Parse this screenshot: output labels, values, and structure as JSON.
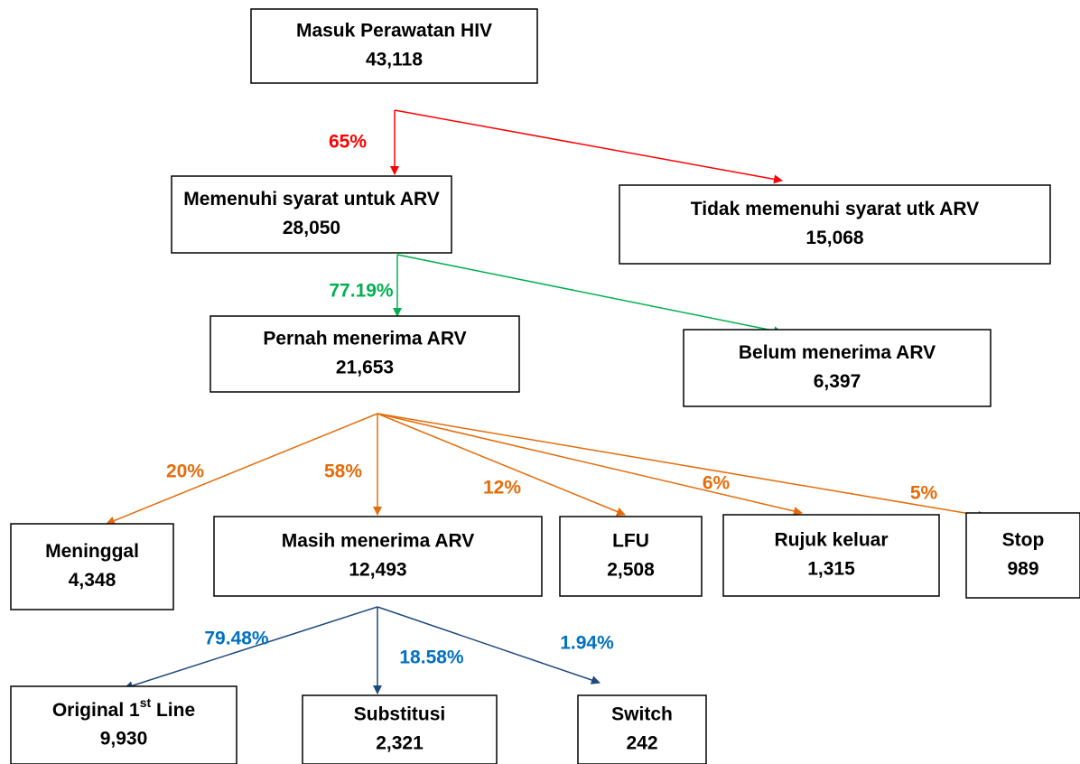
{
  "nodes": [
    {
      "label": "Masuk Perawatan HIV",
      "value": "43,118"
    },
    {
      "label": "Memenuhi syarat untuk ARV",
      "value": "28,050"
    },
    {
      "label": "Tidak memenuhi syarat utk ARV",
      "value": "15,068"
    },
    {
      "label": "Pernah menerima ARV",
      "value": "21,653"
    },
    {
      "label": "Belum menerima ARV",
      "value": "6,397"
    },
    {
      "label": "Meninggal",
      "value": "4,348"
    },
    {
      "label": "Masih menerima ARV",
      "value": "12,493"
    },
    {
      "label": "LFU",
      "value": "2,508"
    },
    {
      "label": "Rujuk keluar",
      "value": "1,315"
    },
    {
      "label": "Stop",
      "value": "989"
    },
    {
      "label": "Original 1",
      "label_sup": "st",
      "label_end": " Line",
      "value": "9,930"
    },
    {
      "label": "Substitusi",
      "value": "2,321"
    },
    {
      "label": "Switch",
      "value": "242"
    }
  ],
  "edges": [
    {
      "label": "65%"
    },
    {
      "label": "77.19%"
    },
    {
      "label": "20%"
    },
    {
      "label": "58%"
    },
    {
      "label": "12%"
    },
    {
      "label": "6%"
    },
    {
      "label": "5%"
    },
    {
      "label": "79.48%"
    },
    {
      "label": "18.58%"
    },
    {
      "label": "1.94%"
    }
  ]
}
